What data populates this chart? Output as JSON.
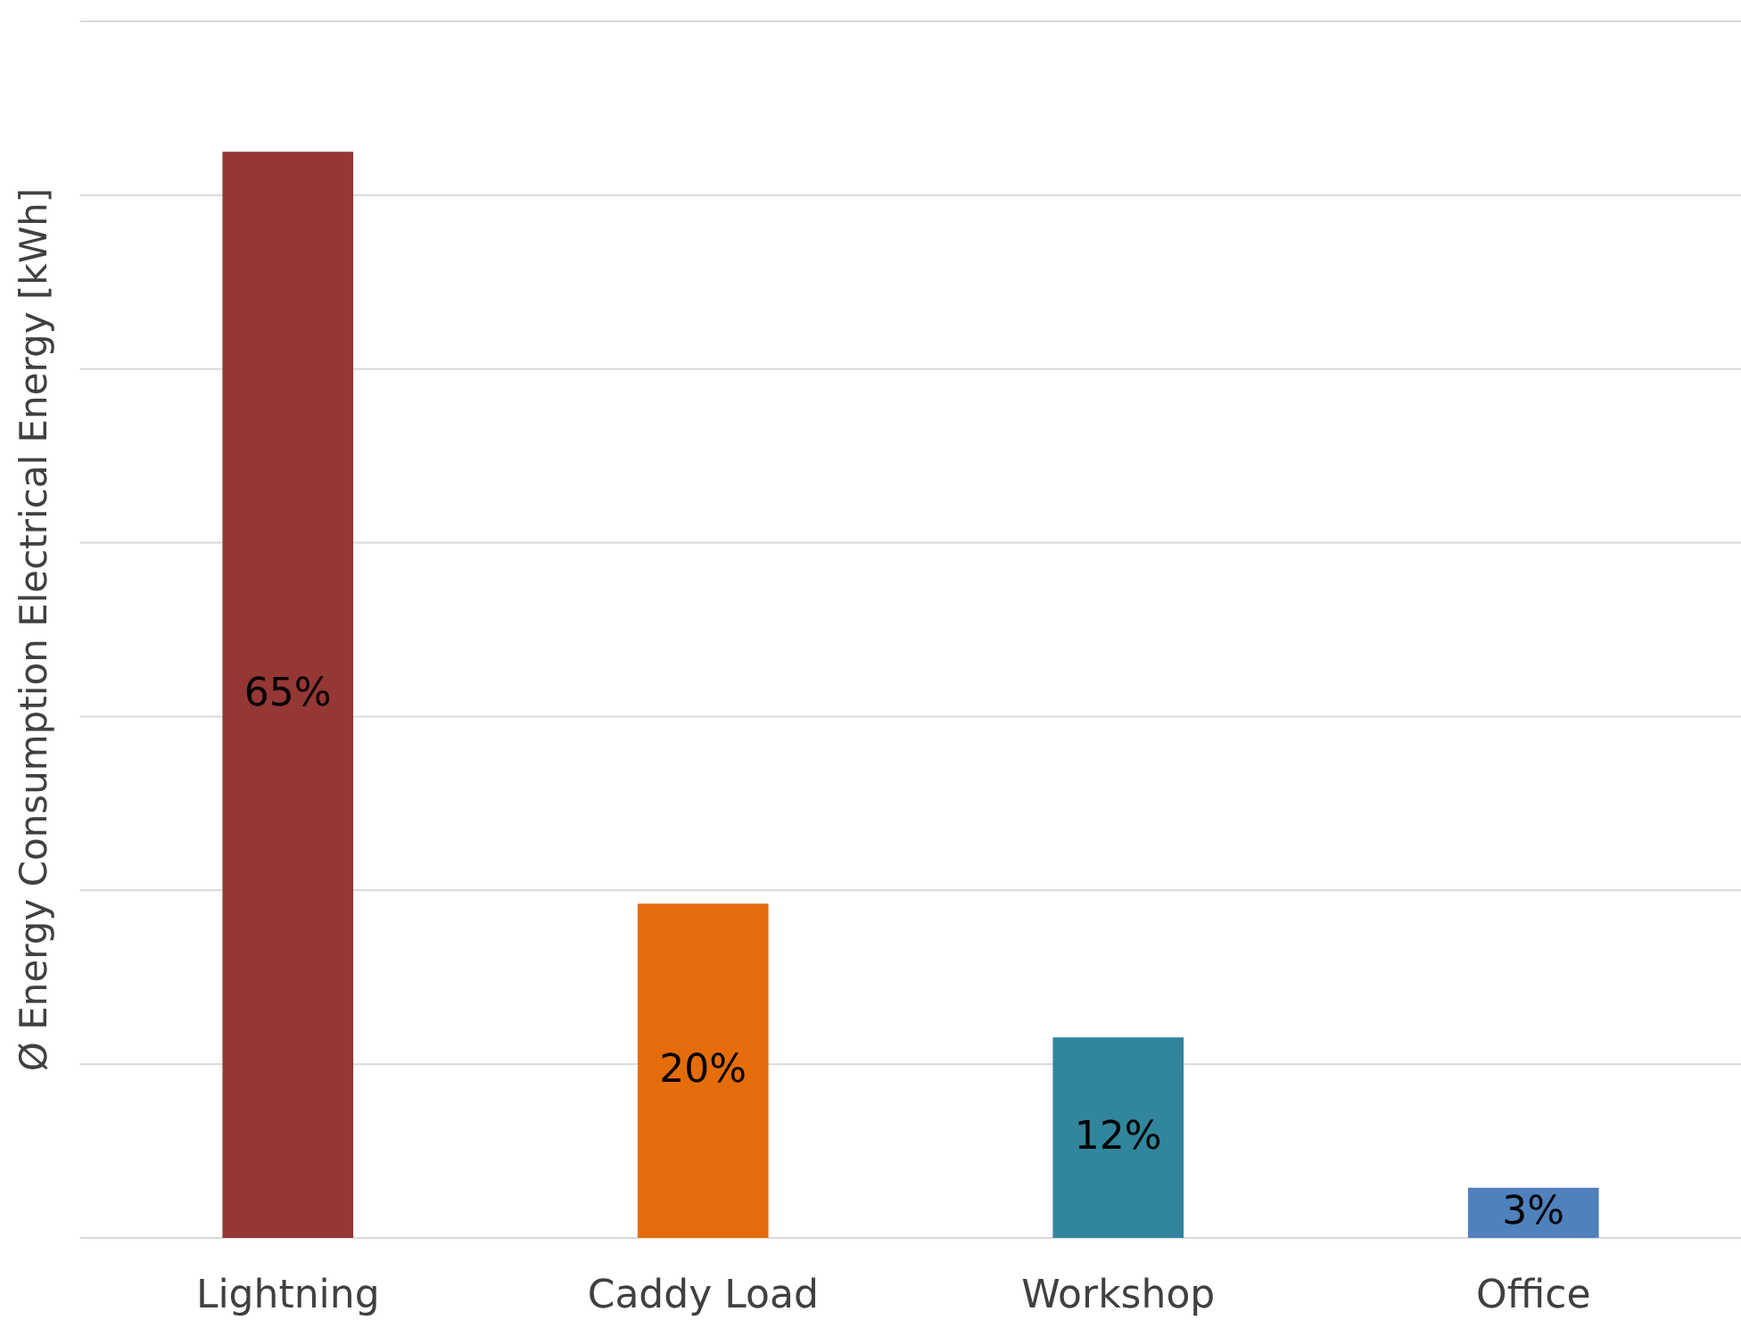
{
  "chart_data": {
    "type": "bar",
    "ylabel": "Ø Energy Consumption Electrical Energy [kWh]",
    "categories": [
      "Lightning",
      "Caddy Load",
      "Workshop",
      "Office"
    ],
    "values": [
      65,
      20,
      12,
      3
    ],
    "colors": [
      "#953735",
      "#e46c0a",
      "#31859c",
      "#4f81bd"
    ],
    "value_labels": [
      "65%",
      "20%",
      "12%",
      "3%"
    ],
    "ylim": [
      0,
      72.8
    ],
    "yticks": [
      {
        "value": 0,
        "label": null
      },
      {
        "value": 10.4,
        "label": null
      },
      {
        "value": 20.8,
        "label": null
      },
      {
        "value": 31.2,
        "label": null
      },
      {
        "value": 41.6,
        "label": null
      },
      {
        "value": 52,
        "label": null
      },
      {
        "value": 62.4,
        "label": null
      },
      {
        "value": 72.8,
        "label": null
      }
    ],
    "grid": "y"
  }
}
